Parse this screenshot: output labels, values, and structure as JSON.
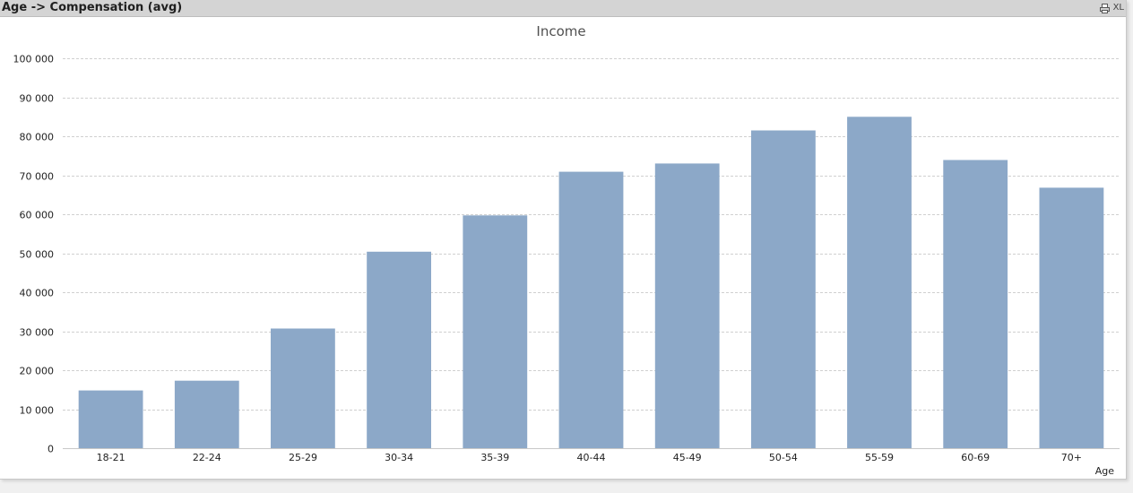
{
  "window": {
    "title": "Age -> Compensation (avg)",
    "print_icon": "print-icon",
    "xl_label": "XL"
  },
  "chart_data": {
    "type": "bar",
    "title": "Income",
    "xlabel": "Age",
    "ylabel": "",
    "categories": [
      "18-21",
      "22-24",
      "25-29",
      "30-34",
      "35-39",
      "40-44",
      "45-49",
      "50-54",
      "55-59",
      "60-69",
      "70+"
    ],
    "values": [
      14800,
      17300,
      30700,
      50400,
      59700,
      70900,
      73000,
      81500,
      85000,
      73900,
      66800
    ],
    "ylim": [
      0,
      100000
    ],
    "yticks": [
      0,
      10000,
      20000,
      30000,
      40000,
      50000,
      60000,
      70000,
      80000,
      90000,
      100000
    ],
    "ytick_labels": [
      "0",
      "10 000",
      "20 000",
      "30 000",
      "40 000",
      "50 000",
      "60 000",
      "70 000",
      "80 000",
      "90 000",
      "100 000"
    ],
    "grid": true,
    "bar_color": "#8ca8c8",
    "grid_color": "#d0d0d0"
  }
}
